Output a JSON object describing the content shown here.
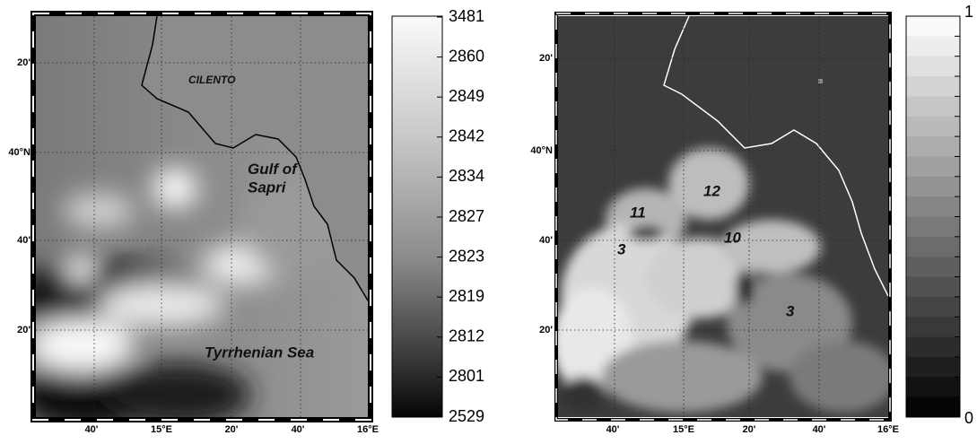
{
  "left_panel": {
    "lat_labels": [
      "20'",
      "40°N",
      "40'",
      "20'"
    ],
    "lon_labels": [
      "40'",
      "15°E",
      "20'",
      "40'",
      "16°E"
    ],
    "annotations": {
      "region": "CILENTO",
      "gulf": "Gulf of\nSapri",
      "sea": "Tyrrhenian Sea"
    },
    "colorbar_labels": [
      "3481",
      "2860",
      "2849",
      "2842",
      "2834",
      "2827",
      "2823",
      "2819",
      "2812",
      "2801",
      "2529"
    ]
  },
  "right_panel": {
    "lat_labels": [
      "20'",
      "40°N",
      "40'",
      "20'"
    ],
    "lon_labels": [
      "40'",
      "15°E",
      "20'",
      "40'",
      "16°E"
    ],
    "annotations": [
      "12",
      "11",
      "10",
      "3",
      "3"
    ],
    "colorbar_labels": [
      "1",
      "0"
    ]
  }
}
